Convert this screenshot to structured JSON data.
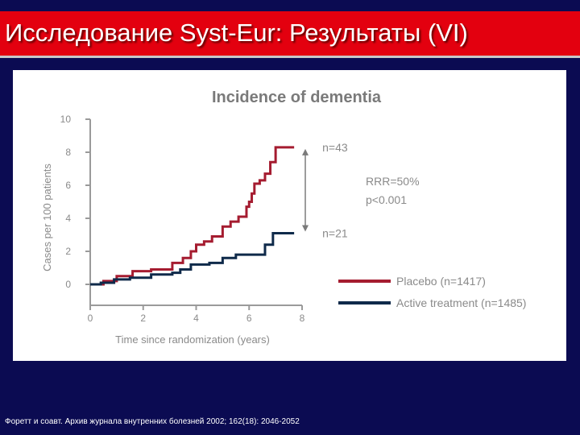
{
  "slide": {
    "title": "Исследование Syst-Eur: Результаты (VI)",
    "footer": "Форетт и соавт. Архив журнала внутренних болезней 2002; 162(18): 2046-2052"
  },
  "colors": {
    "background": "#0b0b52",
    "title_bar": "#e3000f",
    "placebo": "#a51c30",
    "active": "#0f2a4a",
    "axis": "#9a9a9a",
    "text": "#8a8a8a"
  },
  "chart_data": {
    "type": "line",
    "title": "Incidence of dementia",
    "xlabel": "Time since randomization (years)",
    "ylabel": "Cases per 100 patients",
    "xlim": [
      0,
      8
    ],
    "ylim": [
      0,
      10
    ],
    "x_ticks": [
      "0",
      "2",
      "4",
      "6",
      "8"
    ],
    "y_ticks": [
      "0",
      "2",
      "4",
      "6",
      "8",
      "10"
    ],
    "grid": false,
    "legend_position": "bottom-right",
    "series": [
      {
        "name": "Placebo (n=1417)",
        "step": true,
        "end_label": "n=43",
        "x": [
          0,
          0.5,
          1,
          1.6,
          2.3,
          3.1,
          3.5,
          3.8,
          4.0,
          4.3,
          4.6,
          5.0,
          5.3,
          5.6,
          5.9,
          6.0,
          6.1,
          6.2,
          6.4,
          6.6,
          6.8,
          7.0,
          7.7
        ],
        "y": [
          0,
          0.2,
          0.5,
          0.8,
          0.9,
          1.3,
          1.6,
          2.0,
          2.4,
          2.6,
          2.9,
          3.5,
          3.8,
          4.1,
          4.7,
          5.0,
          5.5,
          6.1,
          6.3,
          6.7,
          7.4,
          8.3,
          8.3
        ]
      },
      {
        "name": "Active treatment (n=1485)",
        "step": true,
        "end_label": "n=21",
        "x": [
          0,
          0.4,
          0.9,
          1.5,
          2.3,
          3.1,
          3.4,
          3.8,
          4.5,
          5.0,
          5.5,
          6.0,
          6.6,
          6.9,
          7.7
        ],
        "y": [
          0,
          0.1,
          0.3,
          0.4,
          0.6,
          0.7,
          0.9,
          1.2,
          1.3,
          1.6,
          1.8,
          1.8,
          2.4,
          3.1,
          3.1
        ]
      }
    ],
    "annotations": [
      "RRR=50%",
      "p<0.001"
    ]
  }
}
